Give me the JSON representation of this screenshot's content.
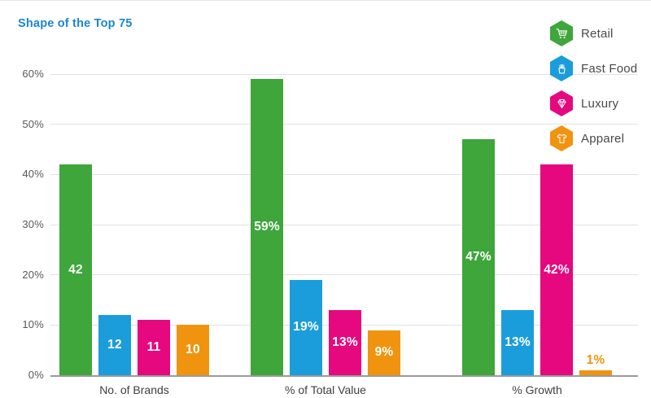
{
  "title": "Shape of the Top 75",
  "colors": {
    "title": "#1a86d3",
    "axis_text": "#58585a",
    "category_text": "#414141",
    "gridline": "#e1e1e1",
    "axis_line": "#9b9b9b",
    "bar_label": "#ffffff",
    "retail": "#3ea63b",
    "fast_food": "#1b9ddc",
    "luxury": "#e5087f",
    "apparel": "#f0940f"
  },
  "legend": {
    "position": "top-right",
    "items": [
      {
        "label": "Retail",
        "icon": "shopping-cart-icon",
        "color": "#3ea63b"
      },
      {
        "label": "Fast Food",
        "icon": "fries-icon",
        "color": "#1b9ddc"
      },
      {
        "label": "Luxury",
        "icon": "diamond-icon",
        "color": "#e5087f"
      },
      {
        "label": "Apparel",
        "icon": "tshirt-icon",
        "color": "#f0940f"
      }
    ]
  },
  "chart_data": {
    "type": "bar",
    "title": "Shape of the Top 75",
    "categories": [
      "No. of Brands",
      "% of Total Value",
      "% Growth"
    ],
    "series": [
      {
        "name": "Retail",
        "color": "#3ea63b",
        "values": [
          42,
          59,
          47
        ],
        "data_labels": [
          "42",
          "59%",
          "47%"
        ]
      },
      {
        "name": "Fast Food",
        "color": "#1b9ddc",
        "values": [
          12,
          19,
          13
        ],
        "data_labels": [
          "12",
          "19%",
          "13%"
        ]
      },
      {
        "name": "Luxury",
        "color": "#e5087f",
        "values": [
          11,
          13,
          42
        ],
        "data_labels": [
          "11",
          "13%",
          "42%"
        ]
      },
      {
        "name": "Apparel",
        "color": "#f0940f",
        "values": [
          10,
          9,
          1
        ],
        "data_labels": [
          "10",
          "9%",
          "1%"
        ]
      }
    ],
    "xlabel": "",
    "ylabel": "",
    "ylim": [
      0,
      60
    ],
    "yticks": [
      "0%",
      "10%",
      "20%",
      "30%",
      "40%",
      "50%",
      "60%"
    ],
    "grid": true,
    "legend_position": "top-right"
  }
}
